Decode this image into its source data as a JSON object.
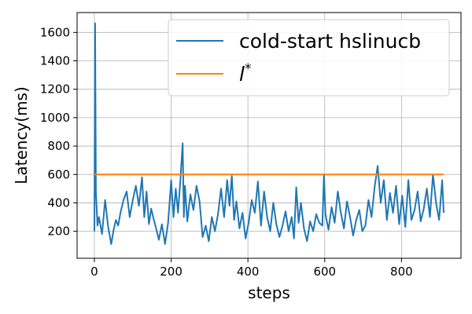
{
  "chart_data": {
    "type": "line",
    "xlabel": "steps",
    "ylabel": "Latency(ms)",
    "xlim": [
      -45,
      955
    ],
    "ylim": [
      10,
      1740
    ],
    "xticks": [
      0,
      200,
      400,
      600,
      800
    ],
    "yticks": [
      200,
      400,
      600,
      800,
      1000,
      1200,
      1400,
      1600
    ],
    "grid": true,
    "legend_position": "top-right",
    "series": [
      {
        "name": "cold-start hslinucb",
        "color": "#1f77b4",
        "x": [
          0,
          2,
          4,
          8,
          12,
          20,
          28,
          36,
          44,
          50,
          56,
          62,
          68,
          76,
          84,
          92,
          100,
          108,
          116,
          124,
          130,
          136,
          142,
          148,
          154,
          160,
          168,
          176,
          184,
          192,
          200,
          206,
          212,
          218,
          224,
          230,
          233,
          236,
          242,
          250,
          258,
          266,
          274,
          282,
          290,
          298,
          306,
          314,
          322,
          330,
          338,
          346,
          352,
          358,
          364,
          370,
          378,
          386,
          394,
          402,
          410,
          418,
          426,
          434,
          442,
          450,
          458,
          466,
          474,
          482,
          490,
          498,
          506,
          514,
          520,
          526,
          532,
          538,
          546,
          554,
          562,
          570,
          578,
          586,
          594,
          598,
          602,
          610,
          618,
          626,
          634,
          642,
          650,
          658,
          666,
          674,
          682,
          690,
          698,
          706,
          714,
          722,
          730,
          738,
          746,
          754,
          762,
          770,
          778,
          786,
          794,
          802,
          810,
          818,
          826,
          834,
          842,
          850,
          858,
          866,
          874,
          882,
          890,
          898,
          906,
          910
        ],
        "y": [
          200,
          1665,
          480,
          240,
          300,
          180,
          420,
          230,
          110,
          210,
          280,
          240,
          330,
          420,
          480,
          300,
          420,
          520,
          380,
          580,
          300,
          480,
          250,
          360,
          290,
          230,
          140,
          250,
          110,
          260,
          560,
          300,
          500,
          330,
          560,
          820,
          300,
          520,
          270,
          460,
          350,
          520,
          410,
          160,
          240,
          130,
          300,
          200,
          320,
          500,
          300,
          560,
          380,
          590,
          280,
          410,
          220,
          330,
          150,
          260,
          420,
          330,
          550,
          240,
          480,
          300,
          200,
          400,
          250,
          160,
          240,
          340,
          200,
          300,
          150,
          510,
          260,
          400,
          220,
          130,
          270,
          200,
          320,
          260,
          240,
          600,
          320,
          210,
          370,
          260,
          480,
          330,
          220,
          410,
          300,
          170,
          280,
          350,
          200,
          240,
          420,
          300,
          510,
          660,
          400,
          560,
          280,
          470,
          330,
          520,
          250,
          450,
          230,
          560,
          280,
          350,
          480,
          270,
          360,
          500,
          300,
          600,
          400,
          280,
          560,
          330
        ]
      },
      {
        "name": "l*",
        "color": "#ff7f0e",
        "x": [
          0,
          910
        ],
        "y": [
          600,
          600
        ]
      }
    ]
  }
}
